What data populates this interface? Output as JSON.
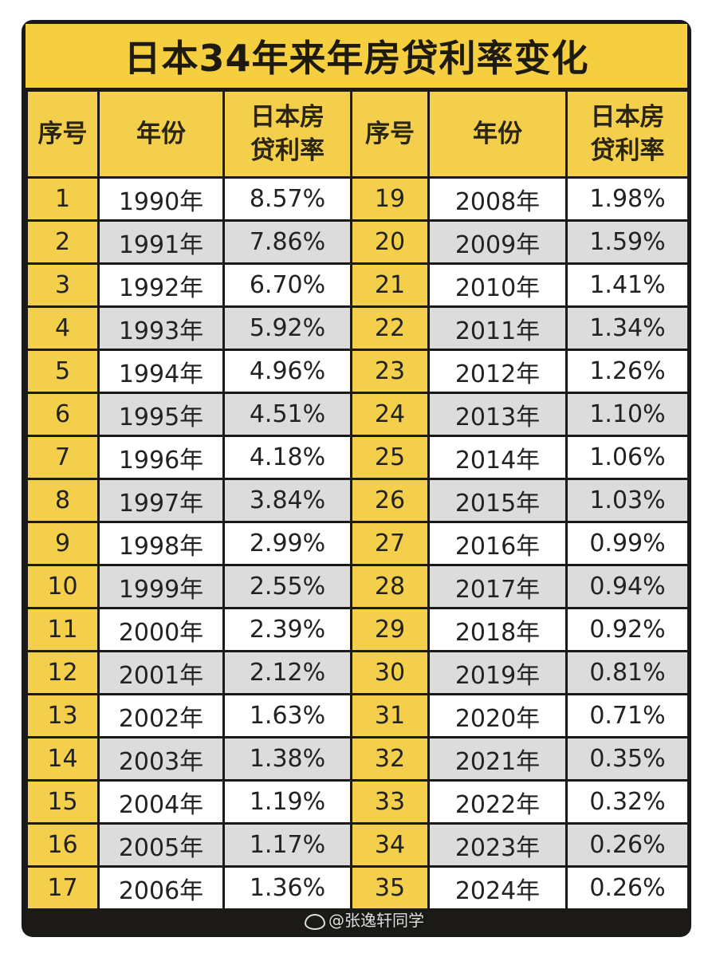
{
  "title": "日本34年来年房贷利率变化",
  "headers": {
    "seq": "序号",
    "year": "年份",
    "rate_line1": "日本房",
    "rate_line2": "贷利率"
  },
  "rows": [
    {
      "left": {
        "seq": "1",
        "year": "1990年",
        "rate": "8.57%"
      },
      "right": {
        "seq": "19",
        "year": "2008年",
        "rate": "1.98%"
      }
    },
    {
      "left": {
        "seq": "2",
        "year": "1991年",
        "rate": "7.86%"
      },
      "right": {
        "seq": "20",
        "year": "2009年",
        "rate": "1.59%"
      }
    },
    {
      "left": {
        "seq": "3",
        "year": "1992年",
        "rate": "6.70%"
      },
      "right": {
        "seq": "21",
        "year": "2010年",
        "rate": "1.41%"
      }
    },
    {
      "left": {
        "seq": "4",
        "year": "1993年",
        "rate": "5.92%"
      },
      "right": {
        "seq": "22",
        "year": "2011年",
        "rate": "1.34%"
      }
    },
    {
      "left": {
        "seq": "5",
        "year": "1994年",
        "rate": "4.96%"
      },
      "right": {
        "seq": "23",
        "year": "2012年",
        "rate": "1.26%"
      }
    },
    {
      "left": {
        "seq": "6",
        "year": "1995年",
        "rate": "4.51%"
      },
      "right": {
        "seq": "24",
        "year": "2013年",
        "rate": "1.10%"
      }
    },
    {
      "left": {
        "seq": "7",
        "year": "1996年",
        "rate": "4.18%"
      },
      "right": {
        "seq": "25",
        "year": "2014年",
        "rate": "1.06%"
      }
    },
    {
      "left": {
        "seq": "8",
        "year": "1997年",
        "rate": "3.84%"
      },
      "right": {
        "seq": "26",
        "year": "2015年",
        "rate": "1.03%"
      }
    },
    {
      "left": {
        "seq": "9",
        "year": "1998年",
        "rate": "2.99%"
      },
      "right": {
        "seq": "27",
        "year": "2016年",
        "rate": "0.99%"
      }
    },
    {
      "left": {
        "seq": "10",
        "year": "1999年",
        "rate": "2.55%"
      },
      "right": {
        "seq": "28",
        "year": "2017年",
        "rate": "0.94%"
      }
    },
    {
      "left": {
        "seq": "11",
        "year": "2000年",
        "rate": "2.39%"
      },
      "right": {
        "seq": "29",
        "year": "2018年",
        "rate": "0.92%"
      }
    },
    {
      "left": {
        "seq": "12",
        "year": "2001年",
        "rate": "2.12%"
      },
      "right": {
        "seq": "30",
        "year": "2019年",
        "rate": "0.81%"
      }
    },
    {
      "left": {
        "seq": "13",
        "year": "2002年",
        "rate": "1.63%"
      },
      "right": {
        "seq": "31",
        "year": "2020年",
        "rate": "0.71%"
      }
    },
    {
      "left": {
        "seq": "14",
        "year": "2003年",
        "rate": "1.38%"
      },
      "right": {
        "seq": "32",
        "year": "2021年",
        "rate": "0.35%"
      }
    },
    {
      "left": {
        "seq": "15",
        "year": "2004年",
        "rate": "1.19%"
      },
      "right": {
        "seq": "33",
        "year": "2022年",
        "rate": "0.32%"
      }
    },
    {
      "left": {
        "seq": "16",
        "year": "2005年",
        "rate": "1.17%"
      },
      "right": {
        "seq": "34",
        "year": "2023年",
        "rate": "0.26%"
      }
    },
    {
      "left": {
        "seq": "17",
        "year": "2006年",
        "rate": "1.36%"
      },
      "right": {
        "seq": "35",
        "year": "2024年",
        "rate": "0.26%"
      }
    }
  ],
  "watermark": "@张逸轩同学",
  "colors": {
    "header_yellow": "#f3cf4c",
    "row_light": "#ffffff",
    "row_dark": "#dcdcdc",
    "grid_line": "#1b1a17"
  }
}
